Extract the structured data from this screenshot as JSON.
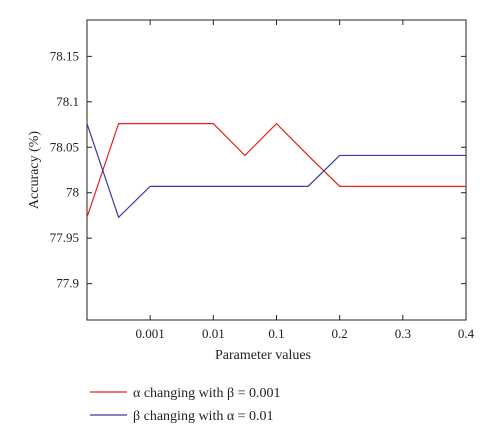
{
  "chart_data": {
    "type": "line",
    "xlabel": "Parameter values",
    "ylabel": "Accuracy (%)",
    "x_ticks": [
      "0.001",
      "0.01",
      "0.1",
      "0.2",
      "0.3",
      "0.4"
    ],
    "y_ticks": [
      "77.9",
      "77.95",
      "78",
      "78.05",
      "78.1",
      "78.15"
    ],
    "ylim": [
      77.86,
      78.19
    ],
    "x_positions": [
      0,
      0.5,
      1,
      1.5,
      2,
      2.5,
      3,
      3.5,
      4,
      4.5,
      5,
      5.5,
      6
    ],
    "series": [
      {
        "name": "α changing with β = 0.001",
        "color": "#e8211b",
        "values": [
          77.973,
          78.076,
          78.076,
          78.076,
          78.076,
          78.041,
          78.076,
          78.041,
          78.007,
          78.007,
          78.007,
          78.007,
          78.007
        ]
      },
      {
        "name": "β changing with α = 0.01",
        "color": "#3a3a9a",
        "values": [
          78.076,
          77.973,
          78.007,
          78.007,
          78.007,
          78.007,
          78.007,
          78.007,
          78.041,
          78.041,
          78.041,
          78.041,
          78.041
        ]
      }
    ],
    "grid": false,
    "legend_position": "bottom-left"
  }
}
